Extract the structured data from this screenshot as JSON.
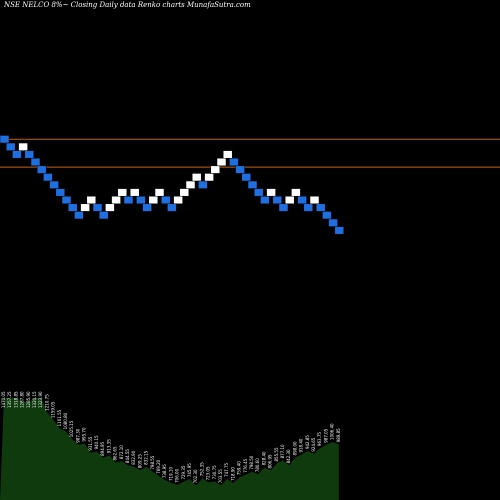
{
  "title": "NSE NELCO 8%~  Closing Daily data  Renko  charts MunafaSutra.com",
  "chart_data": {
    "type": "renko",
    "title": "NSE NELCO 8%~  Closing Daily data  Renko  charts MunafaSutra.com",
    "price_range": [
      600,
      1390
    ],
    "reference_lines": [
      1170,
      1126
    ],
    "up_color": "#ffffff",
    "down_color": "#1f6fe0",
    "line_color": "#c0641c",
    "volume_color": "#0e3a0e",
    "bricks": [
      {
        "dir": "down",
        "price": 1170
      },
      {
        "dir": "down",
        "price": 1158
      },
      {
        "dir": "down",
        "price": 1146
      },
      {
        "dir": "up",
        "price": 1158
      },
      {
        "dir": "down",
        "price": 1146
      },
      {
        "dir": "down",
        "price": 1134
      },
      {
        "dir": "down",
        "price": 1122
      },
      {
        "dir": "down",
        "price": 1110
      },
      {
        "dir": "down",
        "price": 1098
      },
      {
        "dir": "down",
        "price": 1086
      },
      {
        "dir": "down",
        "price": 1074
      },
      {
        "dir": "down",
        "price": 1062
      },
      {
        "dir": "down",
        "price": 1050
      },
      {
        "dir": "up",
        "price": 1062
      },
      {
        "dir": "up",
        "price": 1074
      },
      {
        "dir": "down",
        "price": 1062
      },
      {
        "dir": "down",
        "price": 1050
      },
      {
        "dir": "up",
        "price": 1062
      },
      {
        "dir": "up",
        "price": 1074
      },
      {
        "dir": "up",
        "price": 1086
      },
      {
        "dir": "down",
        "price": 1074
      },
      {
        "dir": "up",
        "price": 1086
      },
      {
        "dir": "down",
        "price": 1074
      },
      {
        "dir": "down",
        "price": 1062
      },
      {
        "dir": "up",
        "price": 1074
      },
      {
        "dir": "up",
        "price": 1086
      },
      {
        "dir": "down",
        "price": 1074
      },
      {
        "dir": "down",
        "price": 1062
      },
      {
        "dir": "up",
        "price": 1074
      },
      {
        "dir": "up",
        "price": 1086
      },
      {
        "dir": "up",
        "price": 1098
      },
      {
        "dir": "up",
        "price": 1110
      },
      {
        "dir": "down",
        "price": 1098
      },
      {
        "dir": "up",
        "price": 1110
      },
      {
        "dir": "up",
        "price": 1122
      },
      {
        "dir": "up",
        "price": 1134
      },
      {
        "dir": "up",
        "price": 1146
      },
      {
        "dir": "down",
        "price": 1134
      },
      {
        "dir": "down",
        "price": 1122
      },
      {
        "dir": "down",
        "price": 1110
      },
      {
        "dir": "down",
        "price": 1098
      },
      {
        "dir": "down",
        "price": 1086
      },
      {
        "dir": "down",
        "price": 1074
      },
      {
        "dir": "up",
        "price": 1086
      },
      {
        "dir": "down",
        "price": 1074
      },
      {
        "dir": "down",
        "price": 1062
      },
      {
        "dir": "up",
        "price": 1074
      },
      {
        "dir": "up",
        "price": 1086
      },
      {
        "dir": "down",
        "price": 1074
      },
      {
        "dir": "down",
        "price": 1062
      },
      {
        "dir": "up",
        "price": 1074
      },
      {
        "dir": "down",
        "price": 1062
      },
      {
        "dir": "down",
        "price": 1050
      },
      {
        "dir": "down",
        "price": 1038
      },
      {
        "dir": "down",
        "price": 1026
      }
    ],
    "volume_labels": [
      "1470.05",
      "1357.25",
      "1318.85",
      "1287.80",
      "1285.90",
      "1320.15",
      "1323.90",
      "1210.75",
      "1159.05",
      "1101.55",
      "1080.80",
      "1025.15",
      "987.30",
      "995.70",
      "931.55",
      "940.15",
      "894.95",
      "913.35",
      "862.65",
      "872.10",
      "844.55",
      "832.90",
      "809.25",
      "832.15",
      "798.55",
      "769.20",
      "738.95",
      "719.10",
      "706.00",
      "729.35",
      "745.95",
      "702.30",
      "752.35",
      "723.05",
      "730.75",
      "703.55",
      "747.75",
      "718.90",
      "759.40",
      "776.45",
      "798.50",
      "780.60",
      "828.40",
      "806.95",
      "855.55",
      "877.10",
      "842.30",
      "898.00",
      "918.40",
      "942.85",
      "924.65",
      "963.75",
      "987.05",
      "1006.40",
      "989.85"
    ]
  }
}
